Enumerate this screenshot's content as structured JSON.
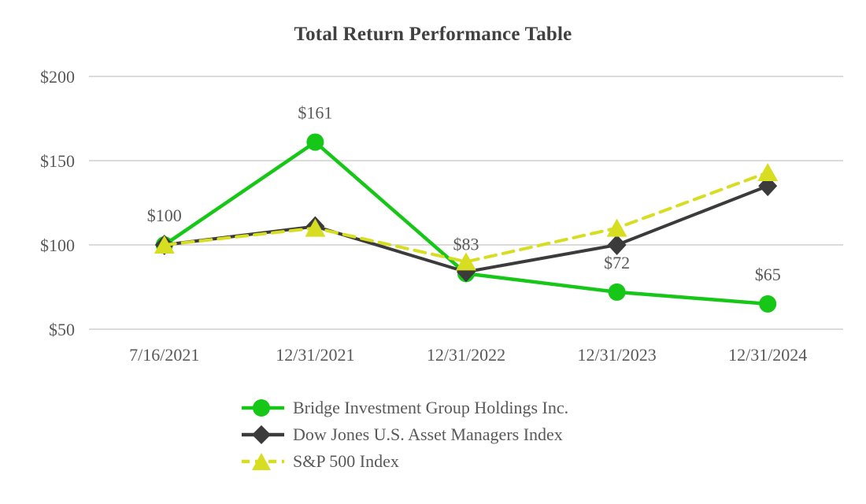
{
  "title": "Total Return Performance Table",
  "styles": {
    "background": "#FFFFFF",
    "title_color": "#414141",
    "text_color": "#595959",
    "grid_color": "#DBDBDB",
    "bridge_green": "#17C717",
    "dow_dark": "#3B3B3B",
    "sp_yellow": "#D7DE22"
  },
  "chart_data": {
    "type": "line",
    "title": "Total Return Performance Table",
    "categories": [
      "7/16/2021",
      "12/31/2021",
      "12/31/2022",
      "12/31/2023",
      "12/31/2024"
    ],
    "xlabel": "",
    "ylabel": "",
    "ylim": [
      50,
      200
    ],
    "grid": true,
    "legend_position": "bottom-left",
    "y_ticks": [
      {
        "value": 200,
        "label": "$200"
      },
      {
        "value": 150,
        "label": "$150"
      },
      {
        "value": 100,
        "label": "$100"
      },
      {
        "value": 50,
        "label": "$50"
      }
    ],
    "series": [
      {
        "name": "Bridge Investment Group Holdings Inc.",
        "color": "#17C717",
        "marker": "circle",
        "line_style": "solid",
        "values": [
          100,
          161,
          83,
          72,
          65
        ],
        "point_labels": [
          "$100",
          "$161",
          "$83",
          "$72",
          "$65"
        ]
      },
      {
        "name": "Dow Jones U.S. Asset Managers Index",
        "color": "#3B3B3B",
        "marker": "diamond",
        "line_style": "solid",
        "values": [
          100,
          111,
          84,
          100,
          135
        ],
        "point_labels": [
          null,
          null,
          null,
          null,
          null
        ]
      },
      {
        "name": "S&P 500 Index",
        "color": "#D7DE22",
        "marker": "triangle",
        "line_style": "dashed",
        "values": [
          100,
          110,
          90,
          110,
          143
        ],
        "point_labels": [
          null,
          null,
          null,
          null,
          null
        ]
      }
    ]
  }
}
